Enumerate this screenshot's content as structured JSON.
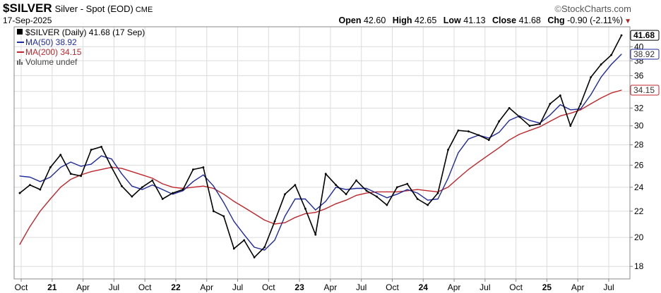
{
  "header": {
    "symbol": "$SILVER",
    "description": "Silver - Spot (EOD)",
    "exchange": "CME",
    "date": "17-Sep-2025",
    "brand": "StockCharts.com",
    "copyright_symbol": "©"
  },
  "ohlc": {
    "open_label": "Open",
    "open": "42.60",
    "high_label": "High",
    "high": "42.65",
    "low_label": "Low",
    "low": "41.13",
    "close_label": "Close",
    "close": "41.68",
    "chg_label": "Chg",
    "chg": "-0.90 (-2.11%)",
    "chg_marker": "▼"
  },
  "legend": {
    "price": "$SILVER (Daily) 41.68 (17 Sep)",
    "ma50": "MA(50) 38.92",
    "ma200": "MA(200) 34.15",
    "volume": "Volume undef"
  },
  "colors": {
    "price": "#000000",
    "ma50": "#1f2a9e",
    "ma200": "#c0262b",
    "grid": "#dcdcdc",
    "axis": "#888888"
  },
  "chart_data": {
    "type": "line",
    "title": "$SILVER Silver - Spot (EOD) CME",
    "x_ticks": [
      "Oct",
      "21",
      "Apr",
      "Jul",
      "Oct",
      "22",
      "Apr",
      "Jul",
      "Oct",
      "23",
      "Apr",
      "Jul",
      "Oct",
      "24",
      "Apr",
      "Jul",
      "Oct",
      "25",
      "Apr",
      "Jul"
    ],
    "y_ticks": [
      18,
      20,
      22,
      24,
      26,
      28,
      30,
      32,
      34,
      36,
      38,
      40
    ],
    "ylim": [
      17.2,
      43.0
    ],
    "scale": "log",
    "grid": true,
    "legend_position": "top-left",
    "axis_position": "right",
    "x": [
      "2020-10",
      "2020-11",
      "2020-12",
      "2021-01",
      "2021-02",
      "2021-03",
      "2021-04",
      "2021-05",
      "2021-06",
      "2021-07",
      "2021-08",
      "2021-09",
      "2021-10",
      "2021-11",
      "2021-12",
      "2022-01",
      "2022-02",
      "2022-03",
      "2022-04",
      "2022-05",
      "2022-06",
      "2022-07",
      "2022-08",
      "2022-09",
      "2022-10",
      "2022-11",
      "2022-12",
      "2023-01",
      "2023-02",
      "2023-03",
      "2023-04",
      "2023-05",
      "2023-06",
      "2023-07",
      "2023-08",
      "2023-09",
      "2023-10",
      "2023-11",
      "2023-12",
      "2024-01",
      "2024-02",
      "2024-03",
      "2024-04",
      "2024-05",
      "2024-06",
      "2024-07",
      "2024-08",
      "2024-09",
      "2024-10",
      "2024-11",
      "2024-12",
      "2025-01",
      "2025-02",
      "2025-03",
      "2025-04",
      "2025-05",
      "2025-06",
      "2025-07",
      "2025-08",
      "2025-09"
    ],
    "series": [
      {
        "name": "$SILVER",
        "values": [
          23.5,
          24.2,
          23.8,
          25.8,
          27.0,
          25.2,
          25.0,
          27.5,
          27.8,
          25.8,
          24.1,
          23.2,
          24.0,
          24.6,
          23.0,
          23.5,
          23.8,
          25.6,
          25.8,
          22.0,
          21.6,
          19.2,
          19.8,
          18.6,
          19.3,
          21.2,
          23.4,
          24.2,
          22.2,
          20.2,
          25.2,
          24.2,
          23.4,
          24.6,
          23.7,
          23.2,
          22.5,
          24.0,
          24.3,
          23.0,
          22.5,
          23.5,
          27.5,
          29.5,
          29.4,
          29.0,
          28.5,
          30.5,
          32.0,
          31.0,
          30.0,
          30.2,
          32.5,
          33.5,
          30.0,
          32.5,
          35.8,
          37.5,
          38.8,
          41.68
        ]
      },
      {
        "name": "MA(50)",
        "values": [
          25.0,
          24.9,
          24.5,
          24.9,
          25.8,
          26.3,
          25.9,
          26.1,
          26.9,
          26.6,
          25.2,
          24.1,
          23.8,
          24.2,
          23.8,
          23.4,
          23.7,
          24.5,
          25.1,
          24.1,
          22.7,
          21.2,
          20.2,
          19.3,
          19.1,
          19.8,
          21.6,
          23.0,
          23.0,
          22.1,
          22.8,
          24.0,
          23.8,
          23.9,
          23.9,
          23.5,
          23.1,
          23.4,
          23.8,
          23.5,
          22.9,
          23.0,
          24.8,
          27.2,
          28.6,
          29.0,
          28.7,
          29.3,
          30.6,
          31.1,
          30.6,
          30.3,
          31.2,
          32.4,
          31.8,
          31.9,
          33.6,
          35.8,
          37.5,
          38.92
        ]
      },
      {
        "name": "MA(200)",
        "values": [
          19.5,
          20.8,
          22.0,
          23.0,
          24.0,
          24.7,
          25.1,
          25.4,
          25.6,
          25.8,
          25.7,
          25.4,
          25.1,
          24.8,
          24.3,
          24.0,
          23.9,
          24.0,
          24.1,
          23.9,
          23.4,
          22.8,
          22.3,
          21.8,
          21.3,
          21.0,
          21.1,
          21.5,
          21.8,
          21.9,
          22.2,
          22.6,
          22.9,
          23.3,
          23.5,
          23.6,
          23.6,
          23.6,
          23.7,
          23.8,
          23.7,
          23.6,
          24.0,
          24.8,
          25.6,
          26.3,
          27.0,
          27.7,
          28.5,
          29.1,
          29.5,
          29.9,
          30.5,
          31.1,
          31.4,
          31.8,
          32.5,
          33.2,
          33.8,
          34.15
        ]
      }
    ],
    "last_value_labels": [
      "41.68",
      "38.92",
      "34.15"
    ]
  }
}
